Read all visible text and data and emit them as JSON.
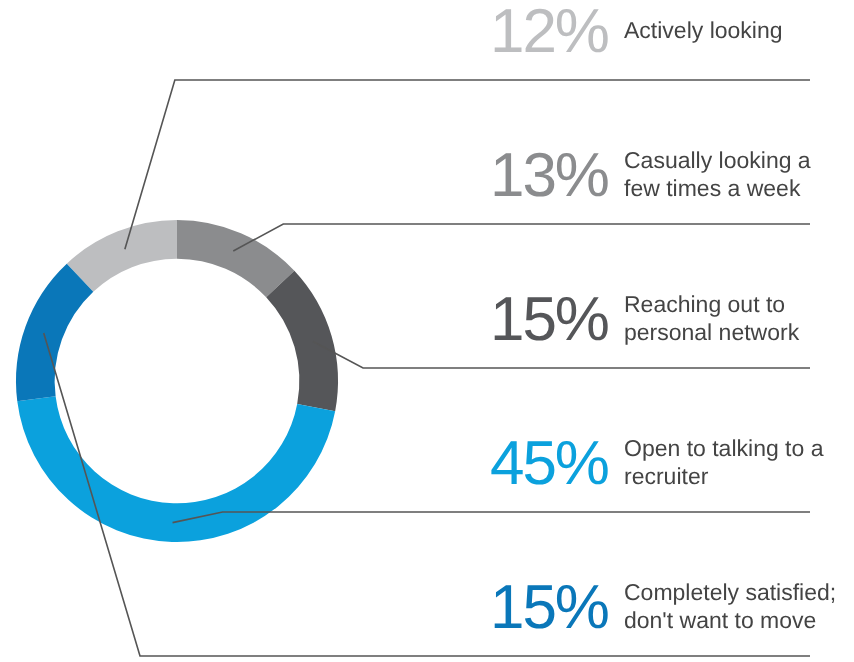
{
  "chart_data": {
    "type": "donut",
    "categories": [
      "Actively looking",
      "Casually looking a few times a week",
      "Reaching out to personal network",
      "Open to talking to a recruiter",
      "Completely satisfied; don't want to move"
    ],
    "values": [
      12,
      13,
      15,
      45,
      15
    ],
    "value_labels": [
      "12%",
      "13%",
      "15%",
      "45%",
      "15%"
    ],
    "colors": [
      "#bdbec0",
      "#8b8c8e",
      "#555659",
      "#0ba1dd",
      "#0a77b9"
    ]
  }
}
